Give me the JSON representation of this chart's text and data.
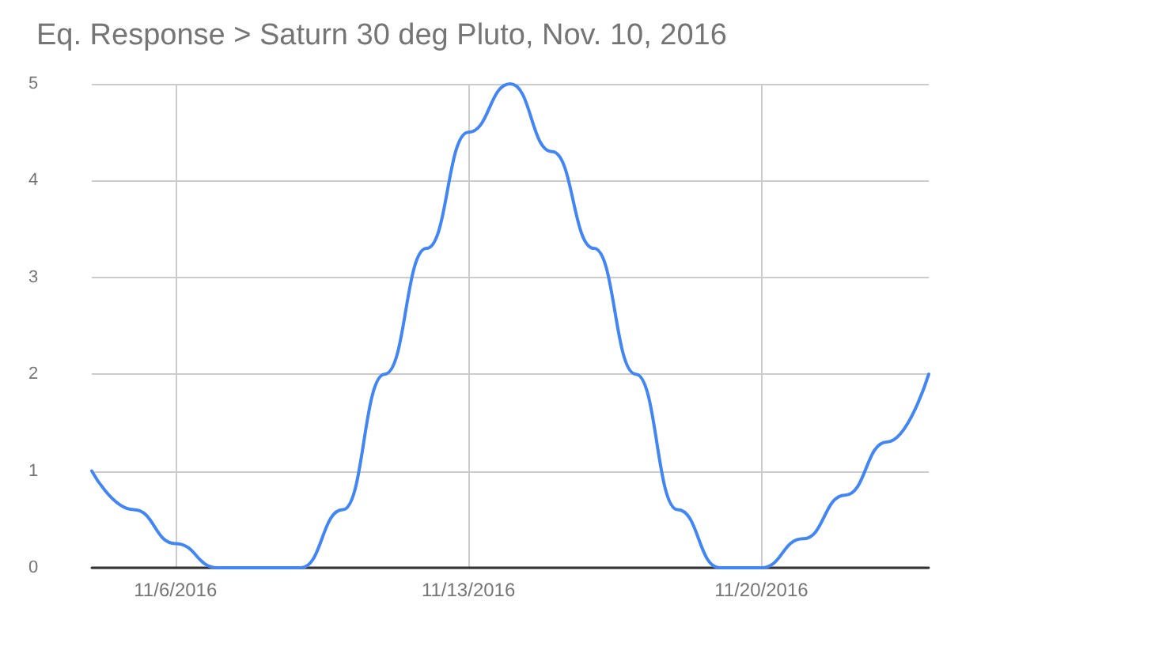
{
  "chart_data": {
    "type": "line",
    "title": "Eq. Response > Saturn 30 deg Pluto, Nov. 10, 2016",
    "x": [
      "2016-11-04",
      "2016-11-05",
      "2016-11-06",
      "2016-11-07",
      "2016-11-08",
      "2016-11-09",
      "2016-11-10",
      "2016-11-11",
      "2016-11-12",
      "2016-11-13",
      "2016-11-14",
      "2016-11-15",
      "2016-11-16",
      "2016-11-17",
      "2016-11-18",
      "2016-11-19",
      "2016-11-20",
      "2016-11-21",
      "2016-11-22",
      "2016-11-23",
      "2016-11-24"
    ],
    "series": [
      {
        "color": "#4285f4",
        "values": [
          1,
          0.6,
          0.25,
          0,
          0,
          0,
          0.6,
          2,
          3.3,
          4.5,
          5,
          4.3,
          3.3,
          2,
          0.6,
          0,
          0,
          0.3,
          0.75,
          1.3,
          2
        ]
      }
    ],
    "xlim": [
      "2016-11-04",
      "2016-11-24"
    ],
    "xticks": [
      {
        "value": "2016-11-06",
        "label": "11/6/2016"
      },
      {
        "value": "2016-11-13",
        "label": "11/13/2016"
      },
      {
        "value": "2016-11-20",
        "label": "11/20/2016"
      }
    ],
    "ylim": [
      0,
      5
    ],
    "yticks": [
      0,
      1,
      2,
      3,
      4,
      5
    ],
    "grid": true,
    "marker": "none",
    "line_style": "solid"
  }
}
